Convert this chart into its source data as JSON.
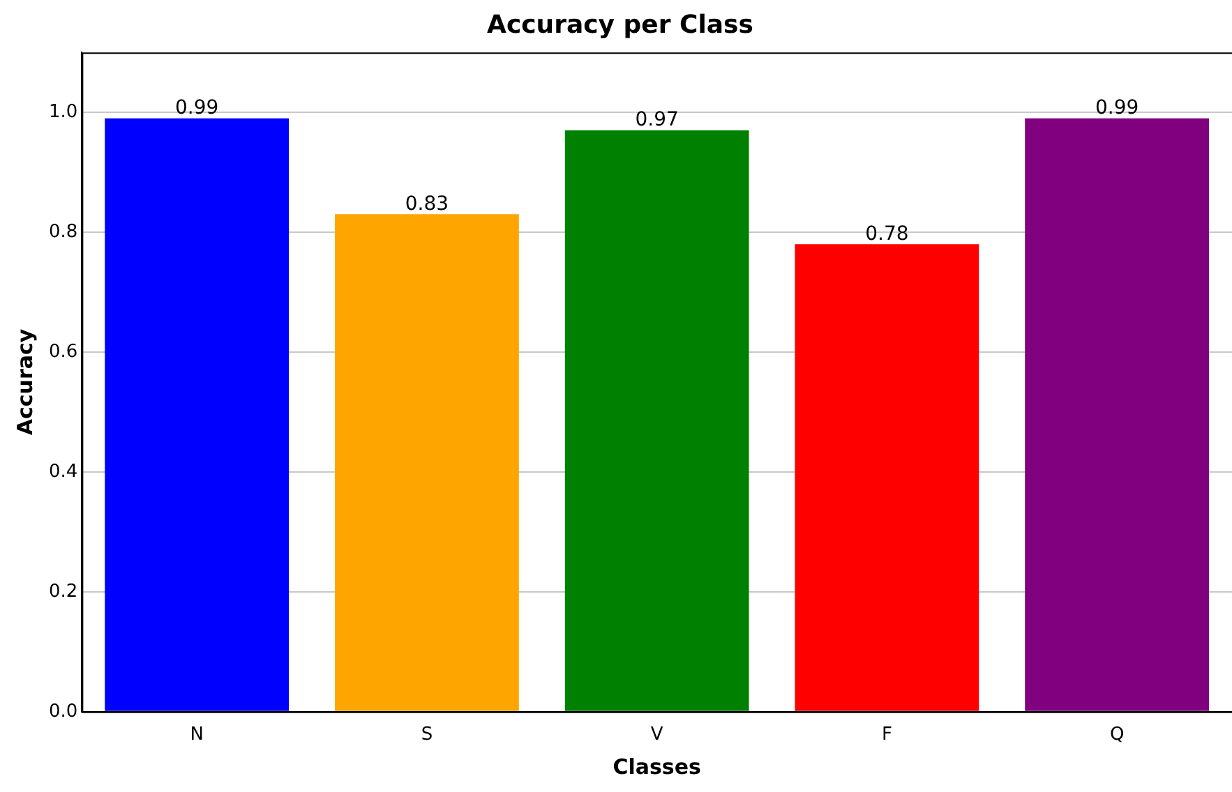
{
  "chart_data": {
    "type": "bar",
    "title": "Accuracy per Class",
    "xlabel": "Classes",
    "ylabel": "Accuracy",
    "categories": [
      "N",
      "S",
      "V",
      "F",
      "Q"
    ],
    "values": [
      0.99,
      0.83,
      0.97,
      0.78,
      0.99
    ],
    "colors": [
      "#0000ff",
      "#ffa500",
      "#008000",
      "#ff0000",
      "#800080"
    ],
    "ylim": [
      0,
      1.1
    ],
    "yticks": [
      {
        "value": 0,
        "label": "0.0"
      },
      {
        "value": 0.2,
        "label": "0.2"
      },
      {
        "value": 0.4,
        "label": "0.4"
      },
      {
        "value": 0.6,
        "label": "0.6"
      },
      {
        "value": 0.8,
        "label": "0.8"
      },
      {
        "value": 1,
        "label": "1.0"
      }
    ],
    "grid": "y",
    "data_labels": true
  }
}
